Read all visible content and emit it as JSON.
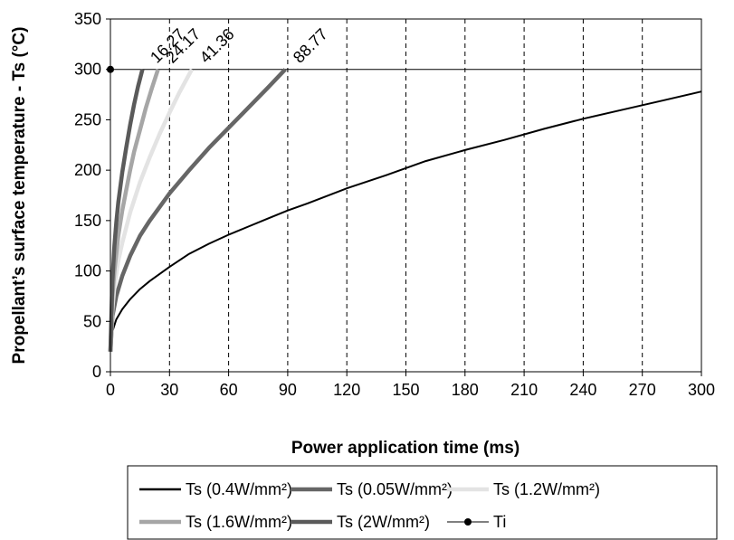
{
  "chart_data": {
    "type": "line",
    "title": "",
    "xlabel": "Power application time (ms)",
    "ylabel": "Propellant’s surface temperature - Ts (°C)",
    "xlim": [
      0,
      300
    ],
    "ylim": [
      0,
      350
    ],
    "xticks": [
      0,
      30,
      60,
      90,
      120,
      150,
      180,
      210,
      240,
      270,
      300
    ],
    "yticks": [
      0,
      50,
      100,
      150,
      200,
      250,
      300,
      350
    ],
    "grid": "vertical dashed",
    "legend_position": "bottom",
    "reference_line": {
      "y": 300
    },
    "series": [
      {
        "name": "Ts (0.4W/mm²)",
        "color": "#000000",
        "x": [
          0,
          1,
          3,
          6,
          10,
          15,
          20,
          30,
          40,
          50,
          60,
          70,
          80,
          90,
          100,
          120,
          140,
          160,
          180,
          200,
          220,
          240,
          260,
          280,
          300
        ],
        "y": [
          20,
          40,
          52,
          62,
          72,
          82,
          90,
          104,
          117,
          127,
          136,
          144,
          152,
          160,
          167,
          182,
          195,
          209,
          220,
          230,
          241,
          251,
          260,
          269,
          278
        ]
      },
      {
        "name": "Ts (0.05W/mm²)",
        "color": "#666666",
        "x": [
          0,
          1,
          3,
          6,
          10,
          15,
          20,
          30,
          40,
          50,
          60,
          70,
          80,
          88.77
        ],
        "y": [
          20,
          55,
          75,
          95,
          115,
          135,
          150,
          177,
          200,
          222,
          242,
          262,
          282,
          300
        ]
      },
      {
        "name": "Ts (1.2W/mm²)",
        "color": "#e3e3e3",
        "x": [
          0,
          1,
          2,
          4,
          6,
          10,
          15,
          20,
          25,
          30,
          35,
          41.36
        ],
        "y": [
          20,
          62,
          85,
          110,
          128,
          158,
          188,
          213,
          236,
          257,
          277,
          300
        ]
      },
      {
        "name": "Ts (1.6W/mm²)",
        "color": "#a6a6a6",
        "x": [
          0,
          1,
          2,
          4,
          6,
          8,
          10,
          12,
          15,
          18,
          21,
          24.17
        ],
        "y": [
          20,
          75,
          100,
          135,
          160,
          180,
          200,
          218,
          240,
          262,
          281,
          300
        ]
      },
      {
        "name": "Ts (2W/mm²)",
        "color": "#5a5a5a",
        "x": [
          0,
          1,
          2,
          3,
          4,
          6,
          8,
          10,
          12,
          14,
          16.27
        ],
        "y": [
          20,
          90,
          125,
          148,
          168,
          198,
          222,
          245,
          265,
          283,
          300
        ]
      },
      {
        "name": "Ti",
        "color": "#000000",
        "x": [
          0
        ],
        "y": [
          300
        ],
        "marker": "circle"
      }
    ],
    "annotations": [
      "16.27",
      "24.17",
      "41.36",
      "88.77"
    ],
    "annotation_x": [
      16.27,
      24.17,
      41.36,
      88.77
    ]
  }
}
